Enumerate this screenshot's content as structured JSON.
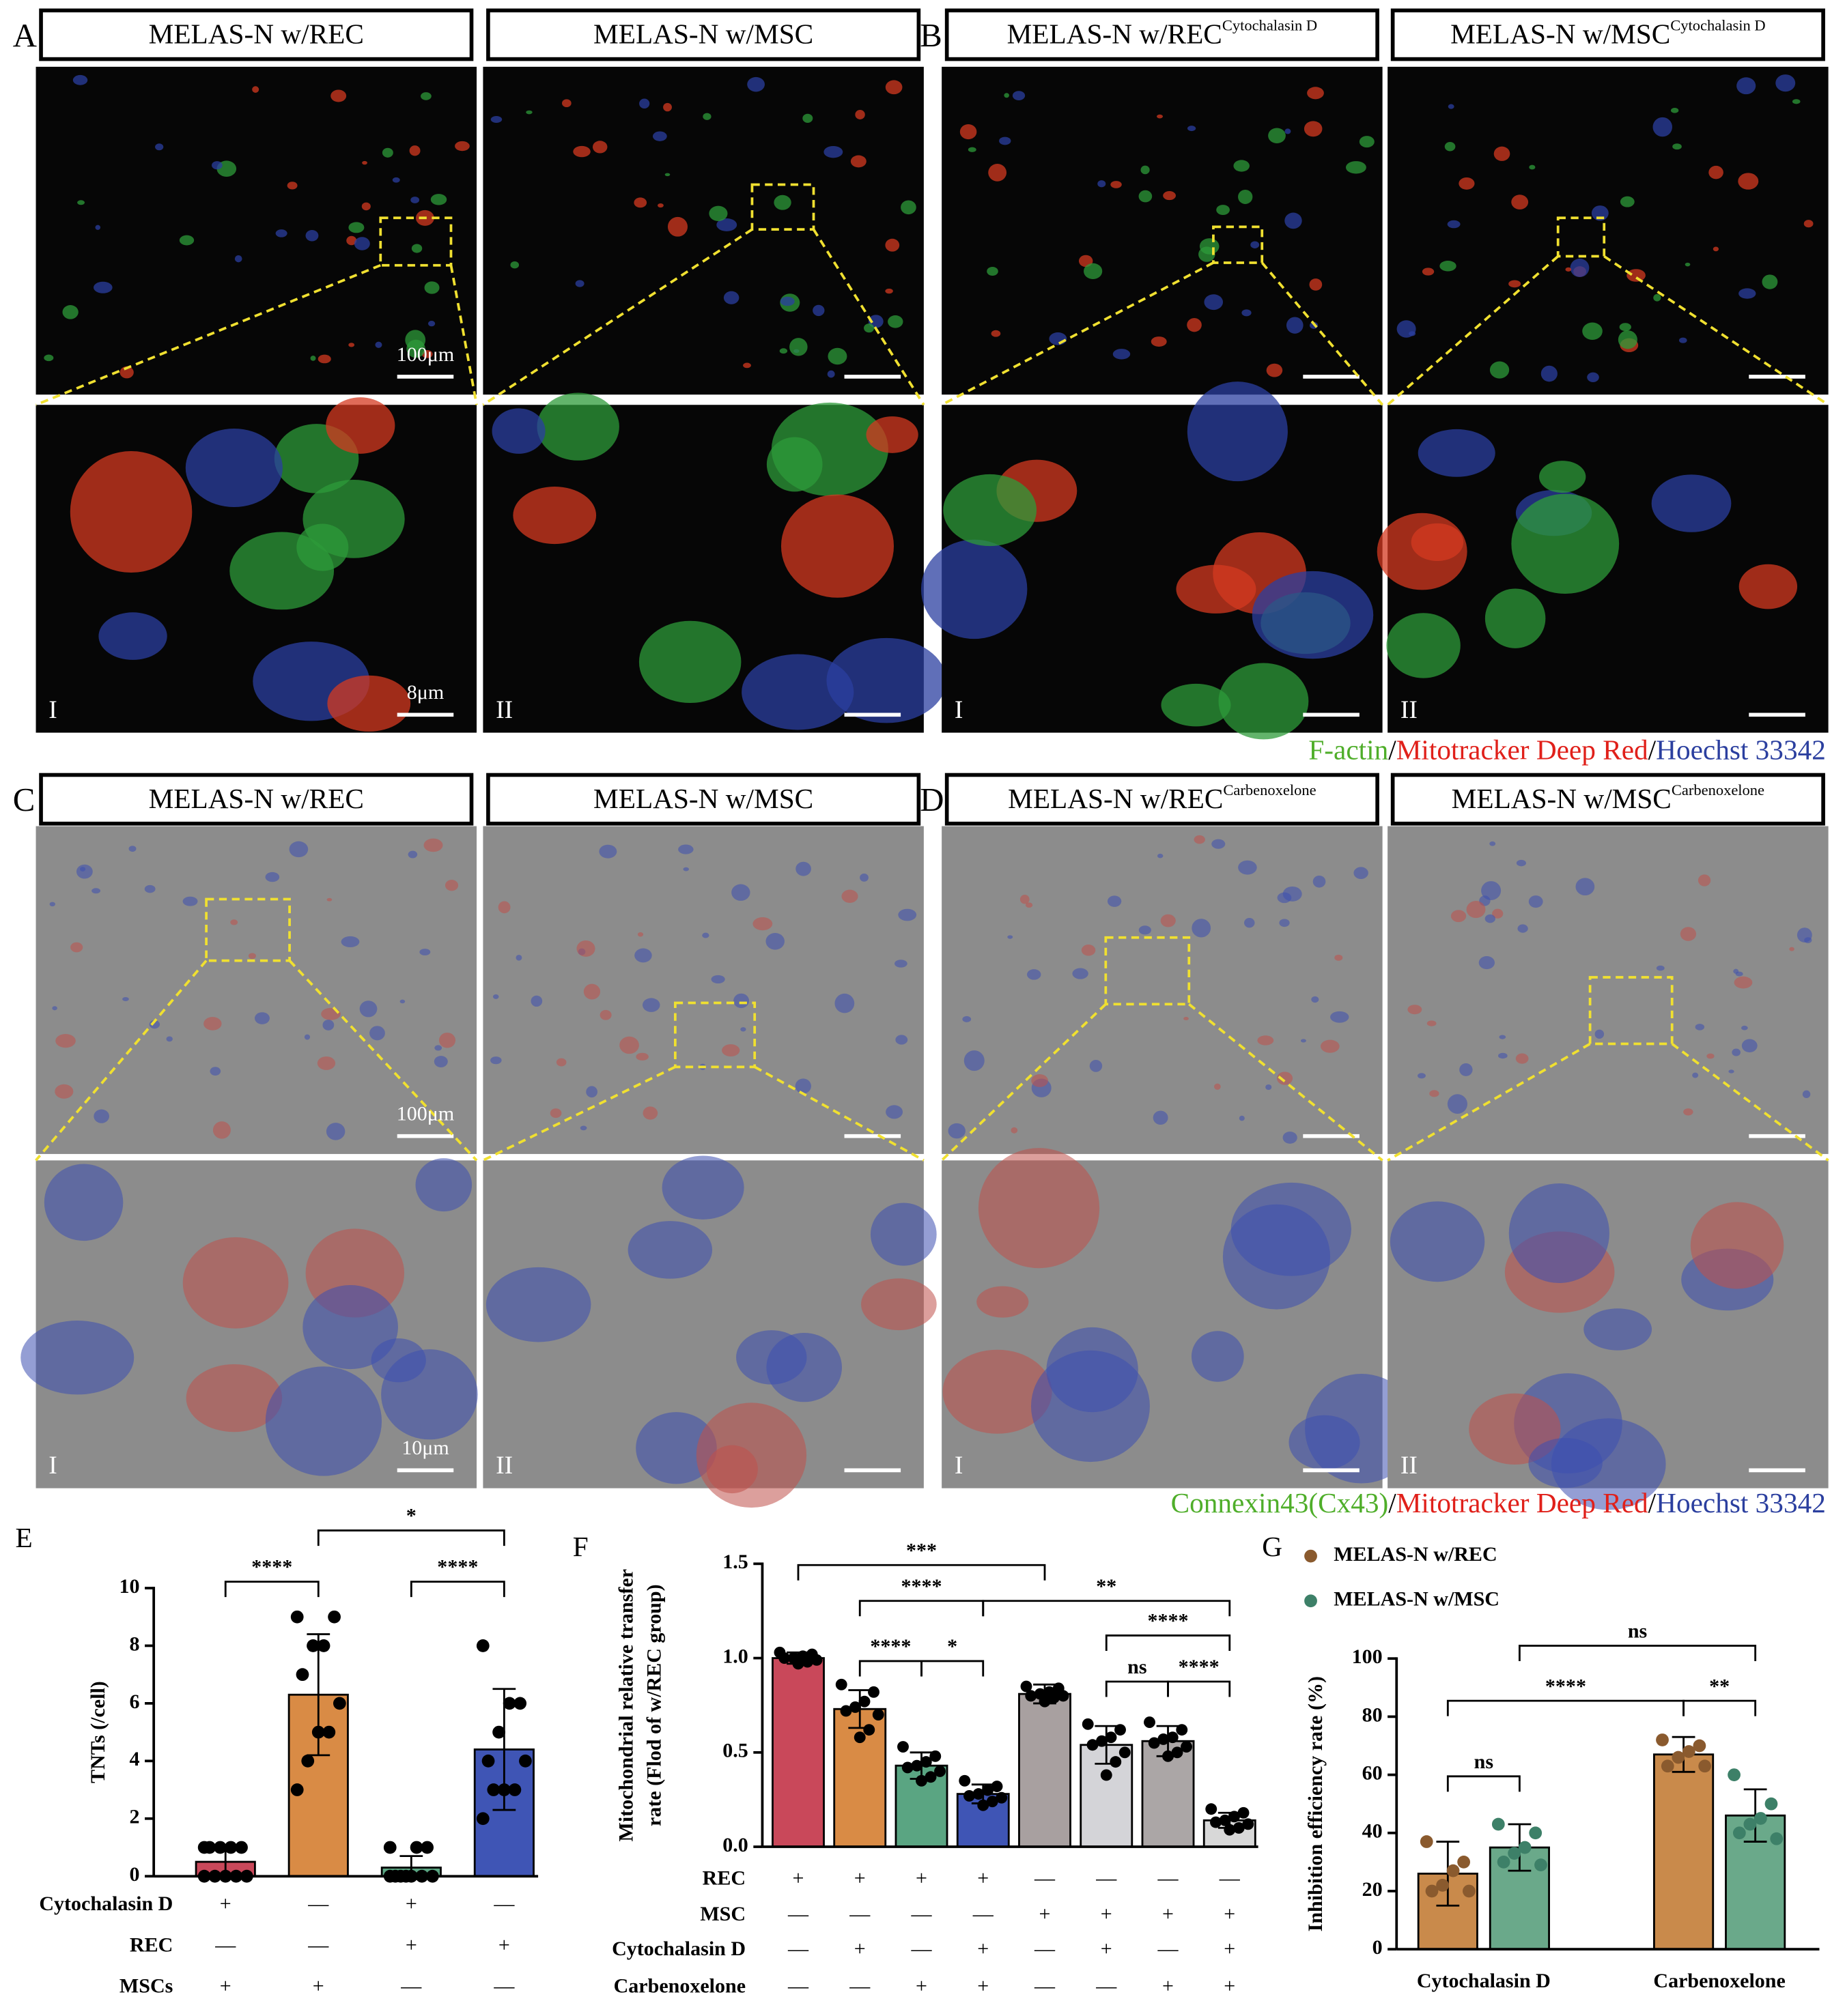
{
  "figure": {
    "rows": [
      {
        "letters": [
          "A",
          "B"
        ],
        "titles": [
          {
            "text": "MELAS-N w/REC"
          },
          {
            "text": "MELAS-N w/MSC"
          },
          {
            "text": "MELAS-N w/REC",
            "sup": "Cytochalasin D"
          },
          {
            "text": "MELAS-N w/MSC",
            "sup": "Cytochalasin D"
          }
        ],
        "scale_labels": [
          "100μm",
          "8μm"
        ],
        "numerals": [
          "I",
          "II",
          "I",
          "II"
        ],
        "stain": [
          {
            "text": "F-actin",
            "color": "#4fae2a"
          },
          {
            "text": "/",
            "color": "#000000"
          },
          {
            "text": "Mitotracker Deep Red",
            "color": "#e0201a"
          },
          {
            "text": "/",
            "color": "#000000"
          },
          {
            "text": "Hoechst 33342",
            "color": "#2b3f9f"
          }
        ]
      },
      {
        "letters": [
          "C",
          "D"
        ],
        "titles": [
          {
            "text": "MELAS-N w/REC"
          },
          {
            "text": "MELAS-N w/MSC"
          },
          {
            "text": "MELAS-N w/REC",
            "sup": "Carbenoxelone"
          },
          {
            "text": "MELAS-N w/MSC",
            "sup": "Carbenoxelone"
          }
        ],
        "scale_labels": [
          "100μm",
          "10μm"
        ],
        "numerals": [
          "I",
          "II",
          "I",
          "II"
        ],
        "stain": [
          {
            "text": "Connexin43(Cx43)",
            "color": "#4fae2a"
          },
          {
            "text": "/",
            "color": "#000000"
          },
          {
            "text": "Mitotracker Deep Red",
            "color": "#e0201a"
          },
          {
            "text": "/",
            "color": "#000000"
          },
          {
            "text": "Hoechst 33342",
            "color": "#2b3f9f"
          }
        ]
      }
    ]
  },
  "chart_data": [
    {
      "type": "bar",
      "label": "E",
      "y_label": "TNTs (/cell)",
      "ylim": [
        0,
        10
      ],
      "yticks": [
        0,
        2,
        4,
        6,
        8,
        10
      ],
      "values": [
        0.5,
        6.3,
        0.3,
        4.4
      ],
      "errors": [
        0.5,
        2.1,
        0.4,
        2.1
      ],
      "colors": [
        "#c9485a",
        "#d98b45",
        "#5aa582",
        "#3f55b5"
      ],
      "point_color": "#000000",
      "points": [
        [
          1,
          1,
          1,
          1,
          1,
          0,
          0,
          0,
          0,
          0
        ],
        [
          9,
          9,
          8,
          8,
          7,
          6,
          5,
          5,
          4,
          3
        ],
        [
          1,
          1,
          1,
          0,
          0,
          0,
          0,
          0,
          0,
          0
        ],
        [
          8,
          6,
          6,
          5,
          4,
          4,
          3,
          3,
          3,
          2
        ]
      ],
      "significance": [
        {
          "bars": [
            0,
            1
          ],
          "label": "****"
        },
        {
          "bars": [
            1,
            3
          ],
          "label": "*"
        },
        {
          "bars": [
            2,
            3
          ],
          "label": "****"
        }
      ],
      "conditions": [
        {
          "label": "Cytochalasin D",
          "values": [
            "+",
            "—",
            "+",
            "—"
          ]
        },
        {
          "label": "REC",
          "values": [
            "—",
            "—",
            "+",
            "+"
          ]
        },
        {
          "label": "MSCs",
          "values": [
            "+",
            "+",
            "—",
            "—"
          ]
        }
      ]
    },
    {
      "type": "bar",
      "label": "F",
      "y_label": [
        "Mitochondrial relative  transfer",
        "rate (Flod of w/REC group)"
      ],
      "ylim": [
        0,
        1.5
      ],
      "yticks": [
        {
          "value": 0,
          "label": "0.0"
        },
        0.5,
        {
          "value": 1,
          "label": "1.0"
        },
        1.5
      ],
      "values": [
        1.0,
        0.73,
        0.43,
        0.28,
        0.81,
        0.54,
        0.56,
        0.14
      ],
      "errors": [
        0.03,
        0.1,
        0.07,
        0.05,
        0.05,
        0.1,
        0.08,
        0.04
      ],
      "colors": [
        "#c9485a",
        "#d98b45",
        "#5aa582",
        "#3f55b5",
        "#a8a0a0",
        "#d4d4d8",
        "#aba6a6",
        "#d8d8d8"
      ],
      "point_color": "#000000",
      "points": [
        [
          1.03,
          1.02,
          1.01,
          1.0,
          1.0,
          0.99,
          0.98,
          0.97
        ],
        [
          0.86,
          0.82,
          0.77,
          0.74,
          0.72,
          0.7,
          0.62,
          0.58
        ],
        [
          0.53,
          0.48,
          0.45,
          0.43,
          0.42,
          0.4,
          0.37,
          0.35
        ],
        [
          0.35,
          0.32,
          0.3,
          0.28,
          0.27,
          0.26,
          0.24,
          0.22
        ],
        [
          0.85,
          0.84,
          0.82,
          0.81,
          0.8,
          0.8,
          0.79,
          0.77
        ],
        [
          0.65,
          0.62,
          0.58,
          0.56,
          0.54,
          0.5,
          0.45,
          0.38
        ],
        [
          0.66,
          0.62,
          0.58,
          0.57,
          0.55,
          0.53,
          0.5,
          0.48
        ],
        [
          0.2,
          0.18,
          0.16,
          0.14,
          0.13,
          0.12,
          0.1,
          0.09
        ]
      ],
      "significance": [
        {
          "bars": [
            0,
            4
          ],
          "label": "***"
        },
        {
          "bars": [
            1,
            3
          ],
          "label": "****"
        },
        {
          "bars": [
            3,
            7
          ],
          "label": "**"
        },
        {
          "bars": [
            5,
            7
          ],
          "label": "****"
        },
        {
          "bars": [
            1,
            2
          ],
          "label": "****"
        },
        {
          "bars": [
            2,
            3
          ],
          "label": "*"
        },
        {
          "bars": [
            5,
            6
          ],
          "label": "ns"
        },
        {
          "bars": [
            6,
            7
          ],
          "label": "****"
        }
      ],
      "conditions": [
        {
          "label": "REC",
          "values": [
            "+",
            "+",
            "+",
            "+",
            "—",
            "—",
            "—",
            "—"
          ]
        },
        {
          "label": "MSC",
          "values": [
            "—",
            "—",
            "—",
            "—",
            "+",
            "+",
            "+",
            "+"
          ]
        },
        {
          "label": "Cytochalasin D",
          "values": [
            "—",
            "+",
            "—",
            "+",
            "—",
            "+",
            "—",
            "+"
          ]
        },
        {
          "label": "Carbenoxelone",
          "values": [
            "—",
            "—",
            "+",
            "+",
            "—",
            "—",
            "+",
            "+"
          ]
        }
      ]
    },
    {
      "type": "bar",
      "label": "G",
      "y_label": "Inhibition efficiency rate (%)",
      "ylim": [
        0,
        100
      ],
      "yticks": [
        0,
        20,
        40,
        60,
        80,
        100
      ],
      "categories": [
        "Cytochalasin D",
        "Carbenoxelone"
      ],
      "series": [
        {
          "name": "MELAS-N w/REC",
          "color": "#c98a4b",
          "point_color": "#8a5a2e",
          "values": [
            26,
            67
          ],
          "errors": [
            11,
            6
          ],
          "points": [
            [
              37,
              30,
              27,
              22,
              20,
              20
            ],
            [
              72,
              70,
              68,
              66,
              63,
              63
            ]
          ]
        },
        {
          "name": "MELAS-N w/MSC",
          "color": "#6aa98a",
          "point_color": "#3d8068",
          "values": [
            35,
            46
          ],
          "errors": [
            8,
            9
          ],
          "points": [
            [
              43,
              40,
              35,
              33,
              30,
              29
            ],
            [
              60,
              50,
              45,
              43,
              40,
              38
            ]
          ]
        }
      ],
      "significance": [
        {
          "bars": [
            0,
            1
          ],
          "label": "ns"
        },
        {
          "bars": [
            0,
            2
          ],
          "label": "****"
        },
        {
          "bars": [
            2,
            3
          ],
          "label": "**"
        },
        {
          "bars": [
            1,
            3
          ],
          "label": "ns"
        }
      ]
    }
  ]
}
